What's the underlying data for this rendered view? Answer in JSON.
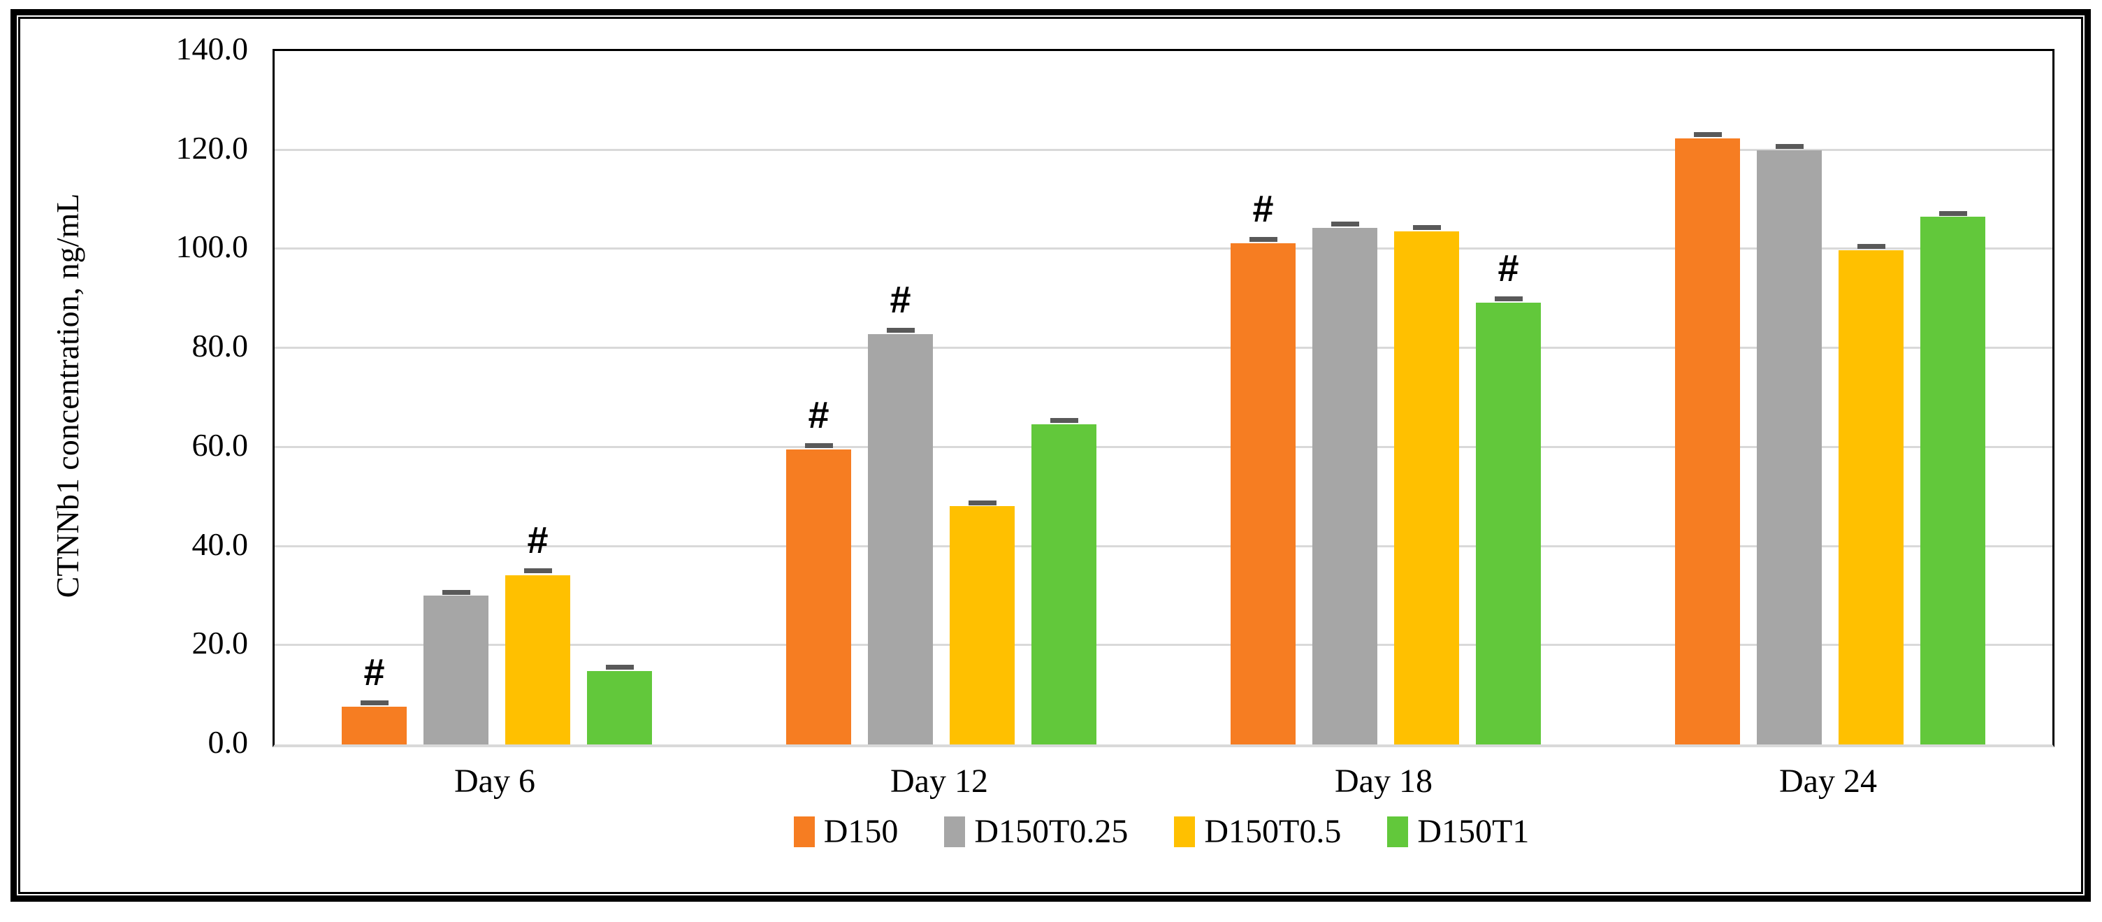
{
  "figure": {
    "background_color": "#FFFFFF",
    "frame_border_color": "#000000"
  },
  "chart_data": {
    "type": "bar",
    "title": "",
    "xlabel": "",
    "ylabel": "CTNNb1 concentration, ng/mL",
    "categories": [
      "Day 6",
      "Day 12",
      "Day 18",
      "Day 24"
    ],
    "series": [
      {
        "name": "D150",
        "color": "#F67D22",
        "values": [
          7.6,
          59.6,
          101.2,
          122.4
        ],
        "errors": [
          0.8,
          0.8,
          0.8,
          0.8
        ],
        "hash_flags": [
          true,
          true,
          true,
          false
        ]
      },
      {
        "name": "D150T0.25",
        "color": "#A6A6A6",
        "values": [
          30.0,
          82.9,
          104.3,
          120.0
        ],
        "errors": [
          0.8,
          0.8,
          0.8,
          0.8
        ],
        "hash_flags": [
          false,
          true,
          false,
          false
        ]
      },
      {
        "name": "D150T0.5",
        "color": "#FFC000",
        "values": [
          34.2,
          48.1,
          103.6,
          99.8
        ],
        "errors": [
          0.9,
          0.8,
          0.8,
          0.8
        ],
        "hash_flags": [
          true,
          false,
          false,
          false
        ]
      },
      {
        "name": "D150T1",
        "color": "#62C83B",
        "values": [
          14.8,
          64.7,
          89.2,
          106.5
        ],
        "errors": [
          0.8,
          0.8,
          0.8,
          0.8
        ],
        "hash_flags": [
          false,
          false,
          true,
          false
        ]
      }
    ],
    "y_ticks": [
      "0.0",
      "20.0",
      "40.0",
      "60.0",
      "80.0",
      "100.0",
      "120.0",
      "140.0"
    ],
    "y_tick_step": 20,
    "ylim": [
      0,
      140
    ],
    "gridline_values": [
      20,
      40,
      60,
      80,
      100,
      120
    ],
    "gridline_color": "#D9D9D9",
    "error_bar_color": "#595959",
    "annotation_symbol": "#",
    "legend_position": "bottom",
    "legend_entries": [
      "D150",
      "D150T0.25",
      "D150T0.5",
      "D150T1"
    ]
  }
}
